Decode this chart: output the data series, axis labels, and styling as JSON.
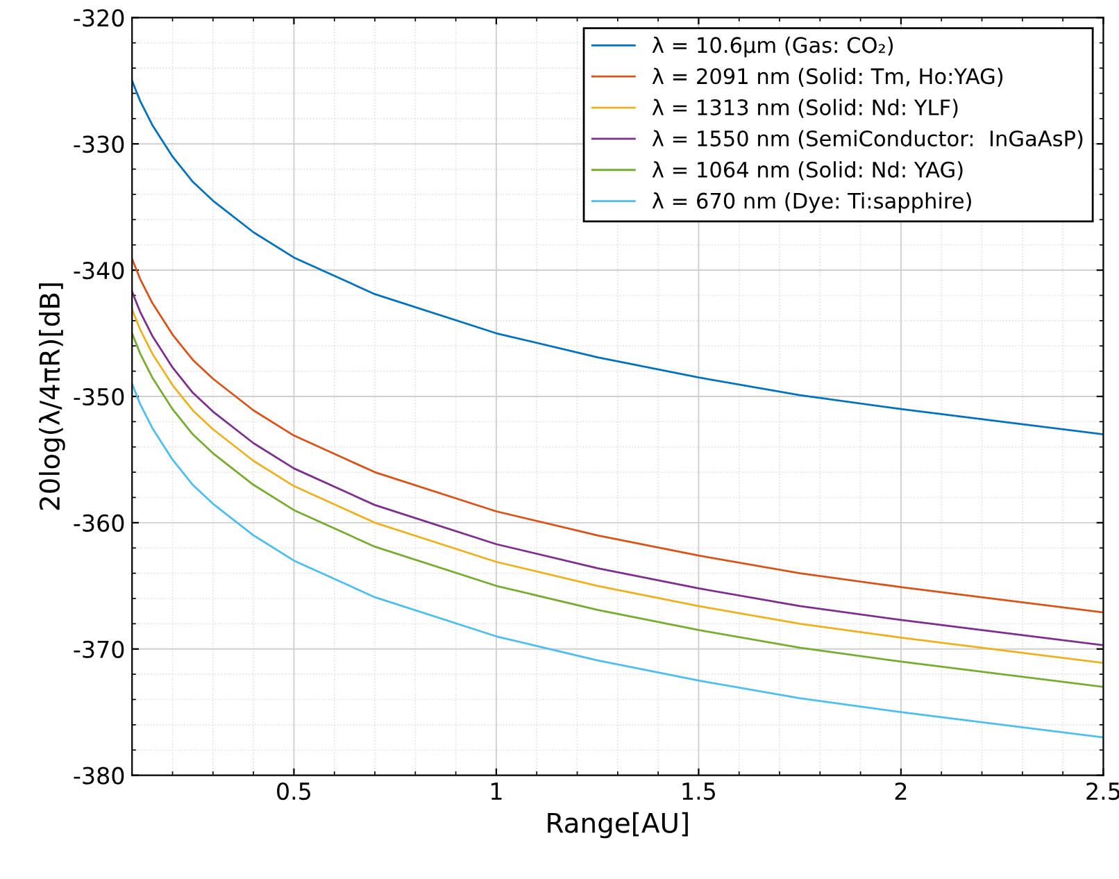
{
  "chart_data": {
    "type": "line",
    "xlabel": "Range[AU]",
    "ylabel": "20log(λ/4πR)[dB]",
    "x": [
      0.1,
      0.12,
      0.15,
      0.2,
      0.25,
      0.3,
      0.4,
      0.5,
      0.7,
      1,
      1.25,
      1.5,
      1.75,
      2,
      2.25,
      2.5
    ],
    "series": [
      {
        "name": "λ = 10.6μm (Gas: CO₂)",
        "color": "#0072bd",
        "values": [
          -325.0,
          -326.6,
          -328.5,
          -331.0,
          -333.0,
          -334.5,
          -337.0,
          -339.0,
          -341.9,
          -345.0,
          -346.9,
          -348.5,
          -349.9,
          -351.0,
          -352.0,
          -353.0
        ]
      },
      {
        "name": "λ = 2091 nm (Solid: Tm, Ho:YAG)",
        "color": "#d95319",
        "values": [
          -339.1,
          -340.7,
          -342.6,
          -345.1,
          -347.1,
          -348.6,
          -351.1,
          -353.1,
          -356.0,
          -359.1,
          -361.0,
          -362.6,
          -364.0,
          -365.1,
          -366.1,
          -367.1
        ]
      },
      {
        "name": "λ = 1313 nm (Solid: Nd: YLF)",
        "color": "#edb120",
        "values": [
          -343.1,
          -344.7,
          -346.6,
          -349.1,
          -351.1,
          -352.6,
          -355.1,
          -357.1,
          -360.0,
          -363.1,
          -365.0,
          -366.6,
          -368.0,
          -369.1,
          -370.1,
          -371.1
        ]
      },
      {
        "name": "λ = 1550 nm (SemiConductor:  InGaAsP)",
        "color": "#7e2f8e",
        "values": [
          -341.7,
          -343.3,
          -345.2,
          -347.7,
          -349.7,
          -351.2,
          -353.7,
          -355.7,
          -358.6,
          -361.7,
          -363.6,
          -365.2,
          -366.6,
          -367.7,
          -368.7,
          -369.7
        ]
      },
      {
        "name": "λ = 1064 nm (Solid: Nd: YAG)",
        "color": "#77ac30",
        "values": [
          -345.0,
          -346.6,
          -348.5,
          -351.0,
          -353.0,
          -354.5,
          -357.0,
          -359.0,
          -361.9,
          -365.0,
          -366.9,
          -368.5,
          -369.9,
          -371.0,
          -372.0,
          -373.0
        ]
      },
      {
        "name": "λ = 670 nm (Dye: Ti:sapphire)",
        "color": "#4dbeee",
        "values": [
          -349.0,
          -350.6,
          -352.5,
          -355.0,
          -357.0,
          -358.5,
          -361.0,
          -363.0,
          -365.9,
          -369.0,
          -370.9,
          -372.5,
          -373.9,
          -375.0,
          -376.0,
          -377.0
        ]
      }
    ],
    "xlim": [
      0.1,
      2.5
    ],
    "xticks": [
      0.5,
      1,
      1.5,
      2,
      2.5
    ],
    "ylim": [
      -380,
      -320
    ],
    "yticks": [
      -380,
      -370,
      -360,
      -350,
      -340,
      -330,
      -320
    ],
    "grid": true,
    "legend": "top right",
    "marker": "none",
    "line_style": "solid"
  }
}
